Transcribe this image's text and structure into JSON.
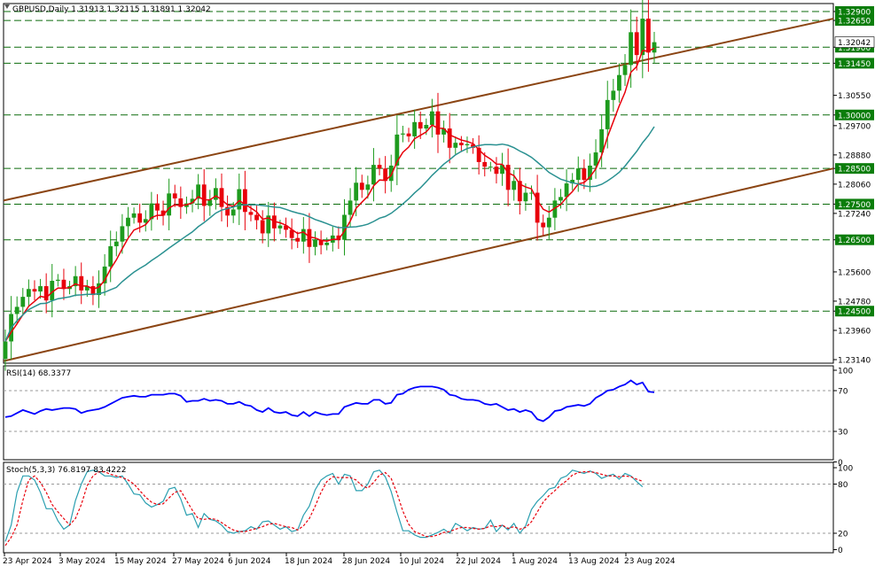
{
  "chart_data": [
    {
      "type": "candlestick",
      "title": "GBPUSD,Daily  1.31913 1.32115 1.31891 1.32042",
      "symbol": "GBPUSD",
      "timeframe": "Daily",
      "ohlc_header": {
        "open": 1.31913,
        "high": 1.32115,
        "low": 1.31891,
        "close": 1.32042
      },
      "current_price_label": "1.32042",
      "ylim": [
        1.231,
        1.332
      ],
      "y_ticks": [
        "1.32900",
        "1.32650",
        "1.31900",
        "1.31450",
        "1.30550",
        "1.30000",
        "1.29700",
        "1.28880",
        "1.28500",
        "1.28060",
        "1.27500",
        "1.27240",
        "1.26500",
        "1.25600",
        "1.24780",
        "1.24500",
        "1.23960",
        "1.23140"
      ],
      "horizontal_levels": [
        1.329,
        1.3265,
        1.319,
        1.3145,
        1.3,
        1.285,
        1.275,
        1.265,
        1.245
      ],
      "highlighted_levels": [
        "1.32900",
        "1.32650",
        "1.31900",
        "1.31450",
        "1.30000",
        "1.28500",
        "1.27500",
        "1.26500",
        "1.24500"
      ],
      "x_labels": [
        "23 Apr 2024",
        "3 May 2024",
        "15 May 2024",
        "27 May 2024",
        "6 Jun 2024",
        "18 Jun 2024",
        "28 Jun 2024",
        "10 Jul 2024",
        "22 Jul 2024",
        "1 Aug 2024",
        "13 Aug 2024",
        "23 Aug 2024"
      ],
      "closes": [
        1.2365,
        1.2442,
        1.2462,
        1.249,
        1.2512,
        1.2505,
        1.252,
        1.248,
        1.2535,
        1.2538,
        1.2512,
        1.252,
        1.2548,
        1.2508,
        1.252,
        1.2495,
        1.2528,
        1.2575,
        1.2632,
        1.2645,
        1.2688,
        1.2712,
        1.2724,
        1.2698,
        1.2708,
        1.2752,
        1.2732,
        1.2718,
        1.278,
        1.2766,
        1.2742,
        1.2752,
        1.2765,
        1.2805,
        1.2745,
        1.2762,
        1.2795,
        1.2742,
        1.2718,
        1.2735,
        1.2792,
        1.2728,
        1.272,
        1.2705,
        1.2668,
        1.2718,
        1.2682,
        1.269,
        1.2678,
        1.2655,
        1.2645,
        1.268,
        1.263,
        1.265,
        1.2635,
        1.2642,
        1.2662,
        1.265,
        1.272,
        1.276,
        1.281,
        1.279,
        1.2805,
        1.286,
        1.285,
        1.2815,
        1.2858,
        1.2945,
        1.2948,
        1.294,
        1.298,
        1.2962,
        1.2972,
        1.301,
        1.2945,
        1.2962,
        1.2908,
        1.2922,
        1.2915,
        1.2918,
        1.2908,
        1.2868,
        1.2855,
        1.2855,
        1.2835,
        1.286,
        1.279,
        1.2815,
        1.2758,
        1.2782,
        1.2782,
        1.2698,
        1.2685,
        1.2712,
        1.276,
        1.277,
        1.2808,
        1.2818,
        1.285,
        1.2818,
        1.2858,
        1.2895,
        1.296,
        1.3042,
        1.3068,
        1.3112,
        1.314,
        1.3232,
        1.3168,
        1.327,
        1.3175,
        1.3204
      ],
      "trend_channel": {
        "upper": [
          {
            "x": "22 Apr 2024",
            "y": 1.276
          },
          {
            "x": "30 Aug 2024",
            "y": 1.327
          }
        ],
        "lower": [
          {
            "x": "22 Apr 2024",
            "y": 1.231
          },
          {
            "x": "30 Aug 2024",
            "y": 1.285
          }
        ]
      },
      "moving_averages": [
        {
          "name": "MA fast",
          "color": "#e8000b",
          "smoothing": "ema5"
        },
        {
          "name": "MA slow",
          "color": "#2a9191",
          "smoothing": "sma20"
        }
      ]
    },
    {
      "type": "line",
      "title": "RSI(14) 68.3377",
      "ylim": [
        0,
        100
      ],
      "y_ticks": [
        "100",
        "70",
        "30",
        "0"
      ],
      "levels": [
        70,
        30
      ],
      "color": "#0000ff",
      "last_value": 68.3377,
      "values": [
        44,
        45,
        48,
        51,
        49,
        47,
        50,
        52,
        51,
        52,
        53,
        53,
        52,
        48,
        50,
        51,
        52,
        54,
        57,
        60,
        63,
        64,
        65,
        64,
        64,
        66,
        66,
        66,
        67,
        67,
        65,
        59,
        60,
        60,
        62,
        60,
        61,
        60,
        57,
        57,
        59,
        56,
        55,
        51,
        49,
        53,
        49,
        48,
        49,
        46,
        45,
        49,
        45,
        49,
        47,
        46,
        47,
        47,
        54,
        56,
        58,
        57,
        57,
        61,
        61,
        57,
        58,
        66,
        67,
        71,
        73,
        74,
        74,
        74,
        73,
        71,
        66,
        65,
        62,
        61,
        61,
        60,
        57,
        56,
        57,
        54,
        51,
        52,
        49,
        51,
        49,
        42,
        40,
        44,
        50,
        51,
        54,
        55,
        56,
        55,
        57,
        63,
        66,
        70,
        71,
        74,
        76,
        80,
        76,
        78,
        69,
        68.34
      ],
      "title_label": "RSI(14) 68.3377"
    },
    {
      "type": "line",
      "title": "Stoch(5,3,3) 76.8197 83.4222",
      "ylim": [
        0,
        100
      ],
      "y_ticks": [
        "100",
        "80",
        "20",
        "0"
      ],
      "levels": [
        80,
        20
      ],
      "series": [
        {
          "name": "%K",
          "color": "#2a9fb0",
          "dash": false,
          "values": [
            10,
            30,
            70,
            90,
            90,
            85,
            70,
            50,
            50,
            35,
            25,
            30,
            60,
            80,
            95,
            97,
            95,
            90,
            90,
            88,
            90,
            80,
            68,
            67,
            57,
            52,
            55,
            59,
            74,
            76,
            62,
            42,
            44,
            27,
            44,
            37,
            35,
            30,
            22,
            20,
            22,
            23,
            28,
            25,
            34,
            35,
            30,
            25,
            28,
            22,
            24,
            42,
            53,
            73,
            85,
            90,
            93,
            80,
            92,
            90,
            72,
            72,
            80,
            95,
            97,
            89,
            71,
            46,
            23,
            23,
            18,
            15,
            15,
            18,
            21,
            25,
            20,
            32,
            28,
            23,
            27,
            25,
            26,
            36,
            22,
            30,
            24,
            32,
            20,
            29,
            49,
            59,
            66,
            74,
            76,
            87,
            90,
            97,
            95,
            93,
            96,
            93,
            87,
            90,
            92,
            86,
            93,
            90,
            83,
            76.8
          ]
        },
        {
          "name": "%D",
          "color": "#e8000b",
          "dash": true,
          "values": [
            5,
            15,
            30,
            60,
            85,
            90,
            82,
            70,
            55,
            46,
            38,
            30,
            38,
            55,
            78,
            90,
            95,
            95,
            92,
            90,
            88,
            85,
            80,
            72,
            64,
            58,
            55,
            56,
            63,
            70,
            72,
            60,
            48,
            38,
            37,
            38,
            37,
            33,
            28,
            24,
            22,
            22,
            24,
            26,
            28,
            31,
            32,
            30,
            28,
            27,
            24,
            29,
            38,
            53,
            70,
            83,
            89,
            88,
            88,
            88,
            85,
            78,
            75,
            82,
            91,
            94,
            87,
            69,
            47,
            31,
            22,
            19,
            16,
            16,
            18,
            21,
            22,
            25,
            27,
            27,
            26,
            25,
            26,
            29,
            28,
            30,
            26,
            28,
            25,
            27,
            34,
            46,
            58,
            66,
            72,
            79,
            84,
            91,
            94,
            95,
            95,
            94,
            92,
            90,
            90,
            89,
            90,
            89,
            86,
            83.4
          ]
        }
      ],
      "title_label": "Stoch(5,3,3) 76.8197 83.4222"
    }
  ]
}
